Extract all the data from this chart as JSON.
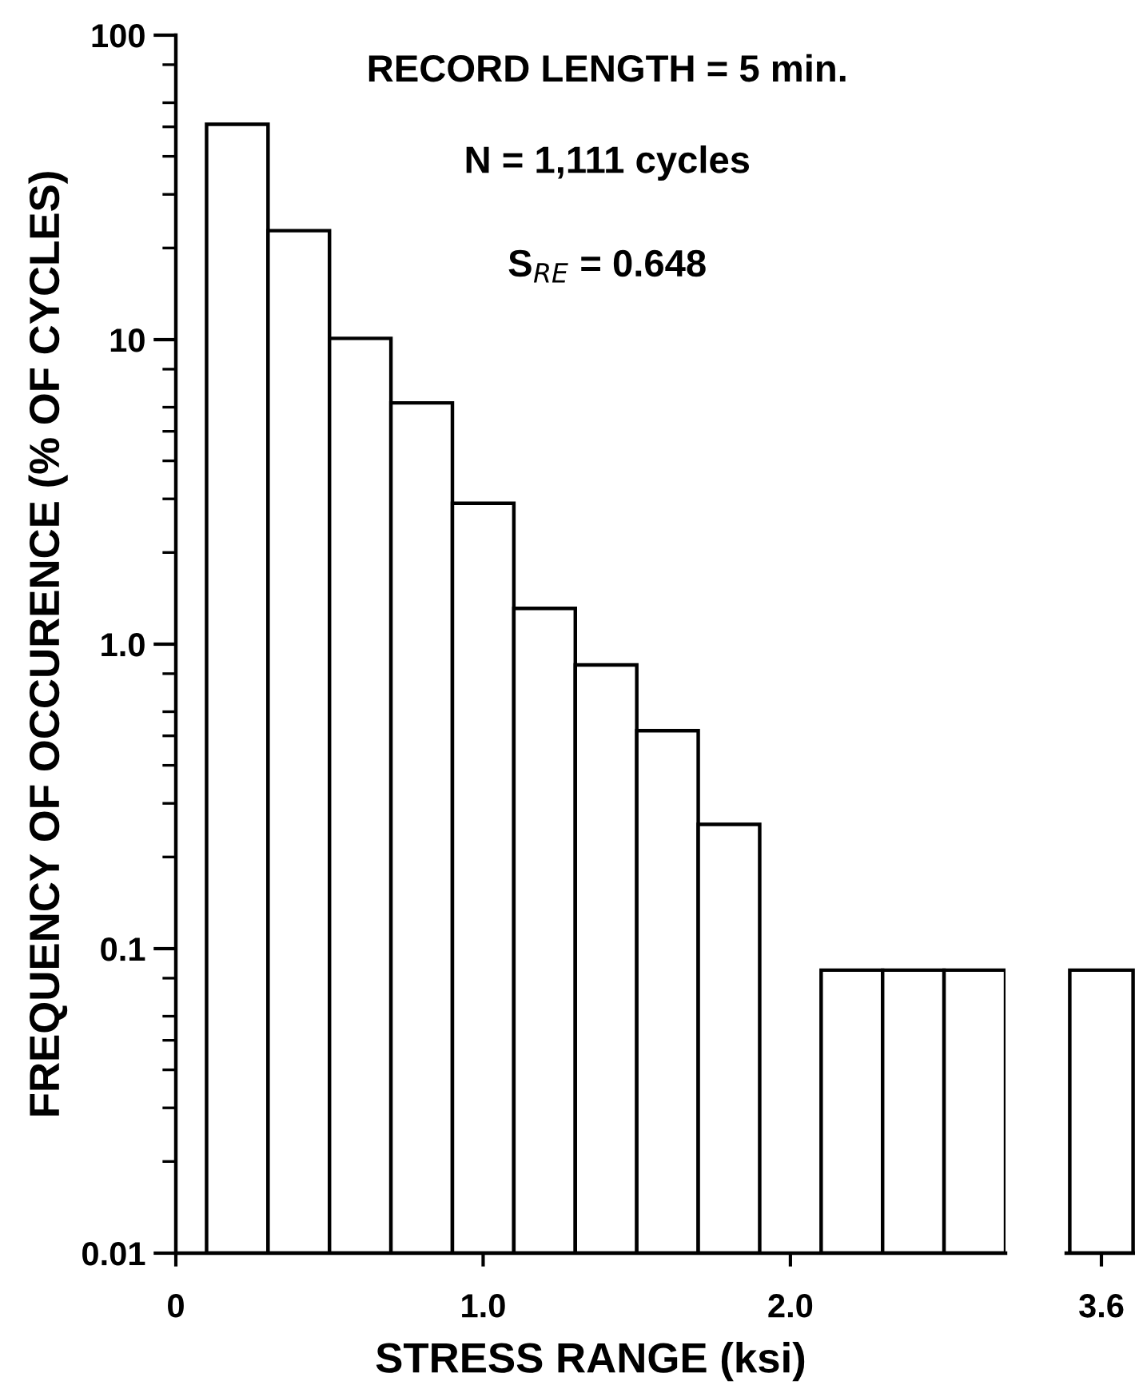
{
  "chart_data": [
    {
      "type": "histogram",
      "xlabel": "STRESS RANGE (ksi)",
      "ylabel": "FREQUENCY OF OCCURENCE (% OF CYCLES)",
      "annotations": [
        "RECORD LENGTH = 5 min.",
        "N = 1,111 cycles",
        "S$_{RE}$ = 0.648"
      ],
      "bins": [
        0.1,
        0.3,
        0.5,
        0.7,
        0.9,
        1.1,
        1.3,
        1.5,
        1.7,
        1.9,
        2.1,
        2.3,
        2.5,
        2.7
      ],
      "values": [
        51,
        22.8,
        10.1,
        6.2,
        2.9,
        1.31,
        0.855,
        0.52,
        0.256,
        null,
        0.085,
        0.085,
        0.085
      ],
      "color": "#ffffff",
      "log": "y",
      "xlim": [
        0,
        2.7
      ],
      "xticks": [
        0,
        {
          "value": 1.0,
          "label": "1.0"
        },
        {
          "value": 2.0,
          "label": "2.0"
        }
      ],
      "ylim": [
        0.01,
        100
      ],
      "yticks": [
        {
          "value": 0.01,
          "label": "0.01"
        },
        0.1,
        {
          "value": 1,
          "label": "1.0"
        },
        10,
        100
      ],
      "grid": false
    },
    {
      "type": "bar",
      "categories": [
        "3.6"
      ],
      "values": [
        0.085
      ],
      "color": "#ffffff",
      "log": "y",
      "ylim": [
        0.01,
        100
      ],
      "tick_labels": "x",
      "grid": false
    }
  ]
}
